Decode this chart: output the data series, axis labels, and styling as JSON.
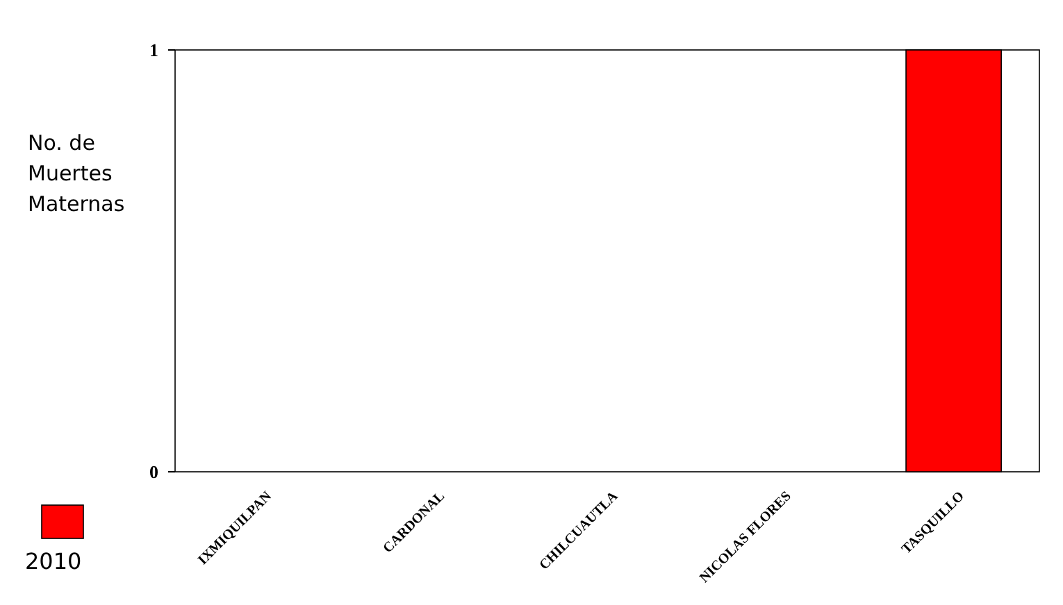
{
  "chart_data": {
    "type": "bar",
    "ylabel": "No. de Muertes Maternas",
    "categories": [
      "IXMIQUILPAN",
      "CARDONAL",
      "CHILCUAUTLA",
      "NICOLAS FLORES",
      "TASQUILLO"
    ],
    "series": [
      {
        "name": "2010",
        "color": "#ff0000",
        "values": [
          0,
          0,
          0,
          0,
          1
        ]
      }
    ],
    "ylim": [
      0,
      1
    ],
    "yticks": [
      0,
      1
    ],
    "grid": false,
    "legend": "bottom left"
  }
}
